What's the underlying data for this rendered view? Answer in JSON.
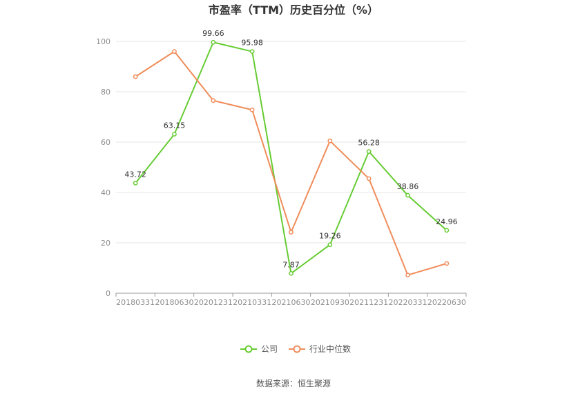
{
  "source_text": "数据来源：恒生聚源",
  "chart_data": {
    "type": "line",
    "title": "市盈率（TTM）历史百分位（%）",
    "categories": [
      "20180331",
      "20180630",
      "20201231",
      "20210331",
      "20210630",
      "20210930",
      "20211231",
      "20220331",
      "20220630"
    ],
    "ylim": [
      0,
      100
    ],
    "yticks": [
      0,
      20,
      40,
      60,
      80,
      100
    ],
    "grid": true,
    "legend_position": "bottom",
    "series": [
      {
        "name": "公司",
        "color": "#66cc33",
        "show_labels": true,
        "labels": [
          "43.72",
          "63.15",
          "99.66",
          "95.98",
          "7.87",
          "19.26",
          "56.28",
          "38.86",
          "24.96"
        ],
        "values": [
          43.72,
          63.15,
          99.66,
          95.98,
          7.87,
          19.26,
          56.28,
          38.86,
          24.96
        ]
      },
      {
        "name": "行业中位数",
        "color": "#f08c5a",
        "show_labels": false,
        "values": [
          86.0,
          96.0,
          76.5,
          72.8,
          24.2,
          60.5,
          45.5,
          7.2,
          11.8
        ]
      }
    ]
  }
}
